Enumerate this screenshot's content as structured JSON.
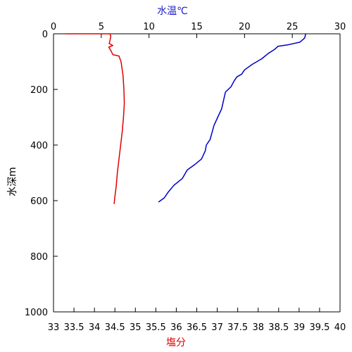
{
  "chart_data": {
    "type": "line",
    "colors": {
      "temperature": "#0000c8",
      "salinity": "#e00000",
      "axis": "#000000",
      "temperature_label": "#1c1cc8",
      "salinity_label": "#e00000"
    },
    "top_axis": {
      "title": "水温℃",
      "range": [
        0,
        30
      ],
      "ticks": [
        "0",
        "5",
        "10",
        "15",
        "20",
        "25",
        "30"
      ]
    },
    "bottom_axis": {
      "title": "塩分",
      "range": [
        33,
        40
      ],
      "ticks": [
        "33",
        "33.5",
        "34",
        "34.5",
        "35",
        "35.5",
        "36",
        "36.5",
        "37",
        "37.5",
        "38",
        "38.5",
        "39",
        "39.5",
        "40"
      ]
    },
    "left_axis": {
      "title": "水深m",
      "range": [
        0,
        1000
      ],
      "inverted": true,
      "ticks": [
        "0",
        "200",
        "400",
        "600",
        "800",
        "1000"
      ]
    },
    "grid": false,
    "series": [
      {
        "key": "temperature",
        "x_axis": "top",
        "points": [
          [
            26.4,
            0
          ],
          [
            26.3,
            15
          ],
          [
            25.8,
            30
          ],
          [
            24.5,
            40
          ],
          [
            23.5,
            45
          ],
          [
            23.2,
            55
          ],
          [
            22.5,
            70
          ],
          [
            21.8,
            90
          ],
          [
            20.8,
            110
          ],
          [
            20.0,
            130
          ],
          [
            19.7,
            145
          ],
          [
            19.2,
            155
          ],
          [
            18.9,
            170
          ],
          [
            18.6,
            190
          ],
          [
            18.0,
            210
          ],
          [
            17.8,
            240
          ],
          [
            17.6,
            270
          ],
          [
            17.2,
            300
          ],
          [
            16.8,
            330
          ],
          [
            16.6,
            355
          ],
          [
            16.4,
            380
          ],
          [
            16.0,
            400
          ],
          [
            15.9,
            420
          ],
          [
            15.5,
            450
          ],
          [
            14.8,
            470
          ],
          [
            14.0,
            490
          ],
          [
            13.5,
            520
          ],
          [
            12.6,
            545
          ],
          [
            12.0,
            570
          ],
          [
            11.6,
            590
          ],
          [
            11.0,
            605
          ]
        ]
      },
      {
        "key": "salinity",
        "x_axis": "bottom",
        "points": [
          [
            33.3,
            0
          ],
          [
            34.38,
            0
          ],
          [
            34.4,
            8
          ],
          [
            34.38,
            25
          ],
          [
            34.36,
            35
          ],
          [
            34.45,
            42
          ],
          [
            34.35,
            48
          ],
          [
            34.4,
            60
          ],
          [
            34.45,
            75
          ],
          [
            34.6,
            80
          ],
          [
            34.65,
            100
          ],
          [
            34.7,
            150
          ],
          [
            34.72,
            200
          ],
          [
            34.73,
            250
          ],
          [
            34.71,
            300
          ],
          [
            34.68,
            350
          ],
          [
            34.64,
            400
          ],
          [
            34.6,
            450
          ],
          [
            34.56,
            500
          ],
          [
            34.53,
            550
          ],
          [
            34.5,
            585
          ],
          [
            34.48,
            612
          ]
        ]
      }
    ]
  }
}
